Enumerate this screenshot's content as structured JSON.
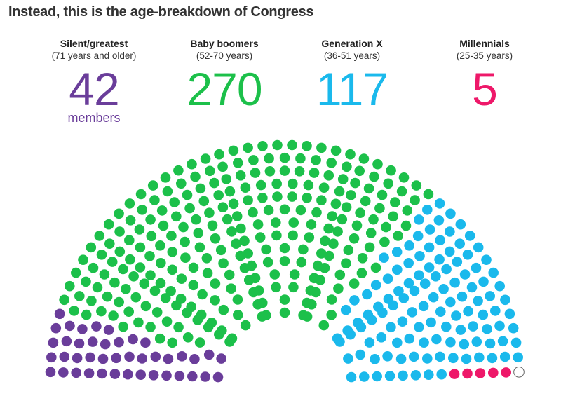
{
  "title": "Instead, this is the age-breakdown of Congress",
  "groups": [
    {
      "name": "Silent/greatest",
      "range": "(71 years and older)",
      "count": "42",
      "unit": "members",
      "color": "#6a3d9a"
    },
    {
      "name": "Baby boomers",
      "range": "(52-70 years)",
      "count": "270",
      "unit": "",
      "color": "#1cc04a"
    },
    {
      "name": "Generation X",
      "range": "(36-51 years)",
      "count": "117",
      "unit": "",
      "color": "#1ab9ec"
    },
    {
      "name": "Millennials",
      "range": "(25-35 years)",
      "count": "5",
      "unit": "",
      "color": "#ee1869"
    }
  ],
  "chart_data": {
    "type": "parliament",
    "title": "Instead, this is the age-breakdown of Congress",
    "total_seats": 435,
    "categories": [
      "Silent/greatest",
      "Baby boomers",
      "Generation X",
      "Millennials",
      "Vacant"
    ],
    "values": [
      42,
      270,
      117,
      5,
      1
    ],
    "colors": [
      "#6a3d9a",
      "#1cc04a",
      "#1ab9ec",
      "#ee1869",
      "#ffffff"
    ]
  }
}
